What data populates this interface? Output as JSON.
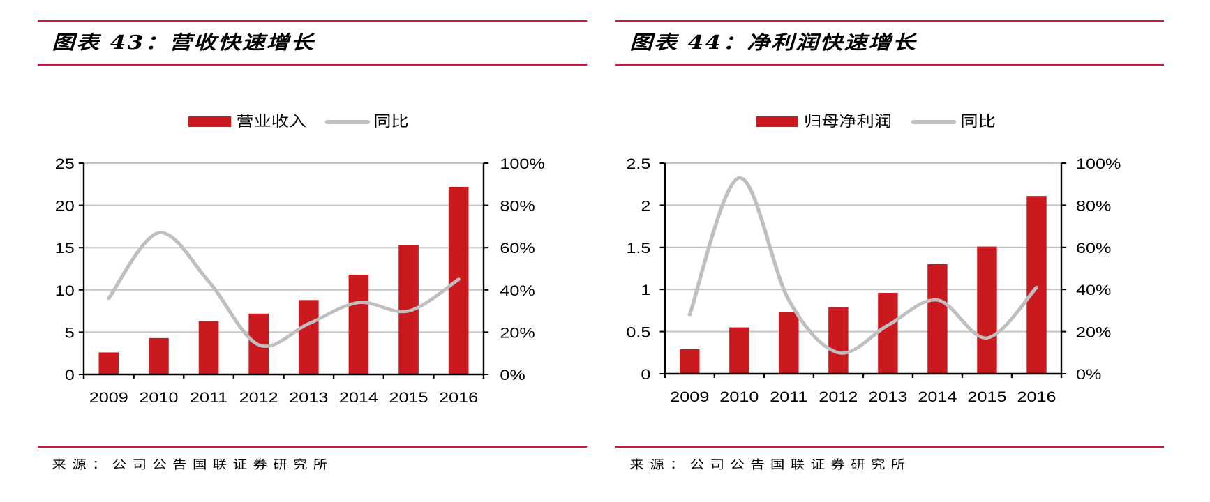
{
  "chart_data": [
    {
      "type": "bar+line",
      "title": "图表 43：营收快速增长",
      "source": "来源：公司公告国联证券研究所",
      "categories": [
        "2009",
        "2010",
        "2011",
        "2012",
        "2013",
        "2014",
        "2015",
        "2016"
      ],
      "series": [
        {
          "name": "营业收入",
          "type": "bar",
          "axis": "left",
          "color": "#cb1a1f",
          "values": [
            2.6,
            4.3,
            6.3,
            7.2,
            8.8,
            11.8,
            15.3,
            22.2
          ]
        },
        {
          "name": "同比",
          "type": "line",
          "axis": "right",
          "color": "#bfbfbf",
          "values": [
            36,
            67,
            44,
            14,
            24,
            34,
            30,
            45
          ]
        }
      ],
      "y_left": {
        "range": [
          0,
          25
        ],
        "ticks": [
          "0",
          "5",
          "10",
          "15",
          "20",
          "25"
        ]
      },
      "y_right": {
        "range": [
          0,
          100
        ],
        "ticks": [
          "0%",
          "20%",
          "40%",
          "60%",
          "80%",
          "100%"
        ]
      },
      "grid": true,
      "legend": "top-center"
    },
    {
      "type": "bar+line",
      "title": "图表 44：净利润快速增长",
      "source": "来源：公司公告国联证券研究所",
      "categories": [
        "2009",
        "2010",
        "2011",
        "2012",
        "2013",
        "2014",
        "2015",
        "2016"
      ],
      "series": [
        {
          "name": "归母净利润",
          "type": "bar",
          "axis": "left",
          "color": "#cb1a1f",
          "values": [
            0.29,
            0.55,
            0.73,
            0.79,
            0.96,
            1.3,
            1.51,
            2.11
          ]
        },
        {
          "name": "同比",
          "type": "line",
          "axis": "right",
          "color": "#bfbfbf",
          "values": [
            28,
            93,
            35,
            10,
            23,
            35,
            17,
            41
          ]
        }
      ],
      "y_left": {
        "range": [
          0,
          2.5
        ],
        "ticks": [
          "0",
          "0.5",
          "1",
          "1.5",
          "2",
          "2.5"
        ]
      },
      "y_right": {
        "range": [
          0,
          100
        ],
        "ticks": [
          "0%",
          "20%",
          "40%",
          "60%",
          "80%",
          "100%"
        ]
      },
      "grid": true,
      "legend": "top-center"
    }
  ]
}
